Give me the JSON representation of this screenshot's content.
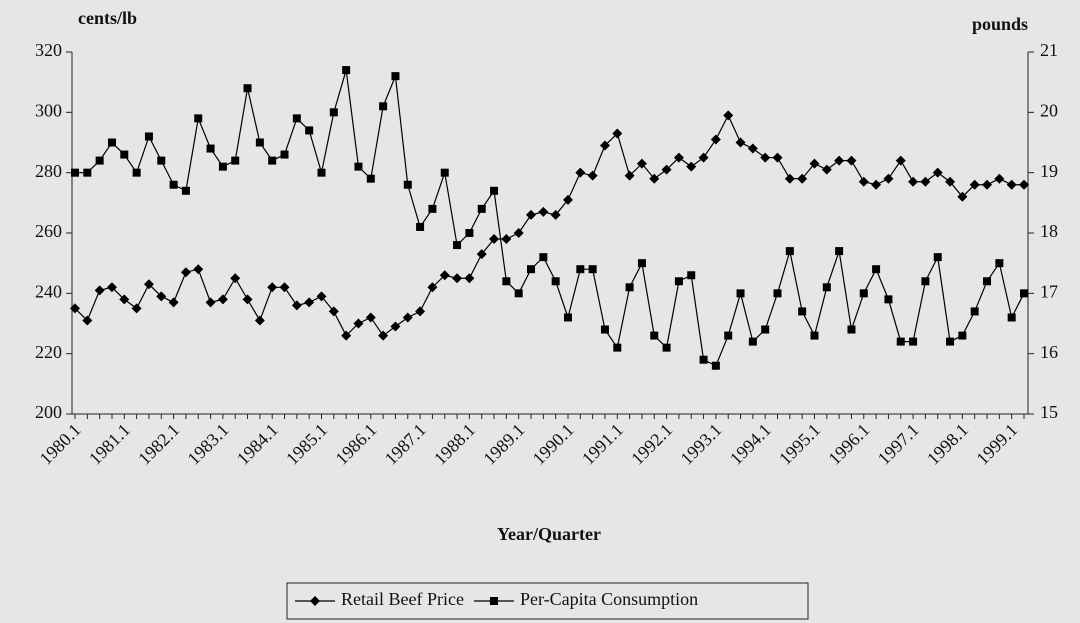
{
  "chart_data": {
    "type": "line",
    "y_label": "cents/lb",
    "y2_label": "pounds",
    "x_label": "Year/Quarter",
    "categories": [
      "1980.1",
      null,
      null,
      null,
      "1981.1",
      null,
      null,
      null,
      "1982.1",
      null,
      null,
      null,
      "1983.1",
      null,
      null,
      null,
      "1984.1",
      null,
      null,
      null,
      "1985.1",
      null,
      null,
      null,
      "1986.1",
      null,
      null,
      null,
      "1987.1",
      null,
      null,
      null,
      "1988.1",
      null,
      null,
      null,
      "1989.1",
      null,
      null,
      null,
      "1990.1",
      null,
      null,
      null,
      "1991.1",
      null,
      null,
      null,
      "1992.1",
      null,
      null,
      null,
      "1993.1",
      null,
      null,
      null,
      "1994.1",
      null,
      null,
      null,
      "1995.1",
      null,
      null,
      null,
      "1996.1",
      null,
      null,
      null,
      "1997.1",
      null,
      null,
      null,
      "1998.1",
      null,
      null,
      null,
      "1999.1",
      null
    ],
    "series": [
      {
        "name": "Retail Beef Price",
        "color": "#000000",
        "marker": "diamond",
        "values": [
          235,
          231,
          241,
          242,
          238,
          235,
          243,
          239,
          237,
          247,
          248,
          237,
          238,
          245,
          238,
          231,
          242,
          242,
          236,
          237,
          239,
          234,
          226,
          230,
          232,
          226,
          229,
          232,
          234,
          242,
          246,
          245,
          245,
          253,
          258,
          258,
          260,
          266,
          267,
          266,
          271,
          280,
          279,
          289,
          293,
          279,
          283,
          278,
          281,
          285,
          282,
          285,
          291,
          299,
          290,
          288,
          285,
          285,
          278,
          278,
          283,
          281,
          284,
          284,
          277,
          276,
          278,
          284,
          277,
          277,
          280,
          277,
          272,
          276,
          276,
          278,
          276,
          276
        ]
      },
      {
        "name": "Per-Capita Consumption",
        "color": "#000000",
        "marker": "square",
        "axis": "y2",
        "values": [
          19.0,
          19.0,
          19.2,
          19.5,
          19.3,
          19.0,
          19.6,
          19.2,
          18.8,
          18.7,
          19.9,
          19.4,
          19.1,
          19.2,
          20.4,
          19.5,
          19.2,
          19.3,
          19.9,
          19.7,
          19.0,
          20.0,
          20.7,
          19.1,
          18.9,
          20.1,
          20.6,
          18.8,
          18.1,
          18.4,
          19.0,
          17.8,
          18.0,
          18.4,
          18.7,
          17.2,
          17.0,
          17.4,
          17.6,
          17.2,
          16.6,
          17.4,
          17.4,
          16.4,
          16.1,
          17.1,
          17.5,
          16.3,
          16.1,
          17.2,
          17.3,
          15.9,
          15.8,
          16.3,
          17.0,
          16.2,
          16.4,
          17.0,
          17.7,
          16.7,
          16.3,
          17.1,
          17.7,
          16.4,
          17.0,
          17.4,
          16.9,
          16.2,
          16.2,
          17.2,
          17.6,
          16.2,
          16.3,
          16.7,
          17.2,
          17.5,
          16.6,
          17.0
        ]
      }
    ],
    "ylim": [
      200,
      320
    ],
    "yticks": [
      200,
      220,
      240,
      260,
      280,
      300,
      320
    ],
    "y2lim": [
      15,
      21
    ],
    "y2ticks": [
      15,
      16,
      17,
      18,
      19,
      20,
      21
    ],
    "legend": "bottom"
  }
}
